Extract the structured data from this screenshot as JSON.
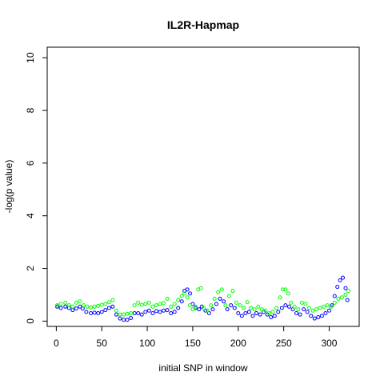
{
  "chart_data": {
    "type": "scatter",
    "title": "IL2R-Hapmap",
    "xlabel": "initial SNP in window",
    "ylabel": "-log(p value)",
    "xlim": [
      -10,
      333
    ],
    "ylim": [
      -0.2,
      10.4
    ],
    "x_ticks": [
      0,
      50,
      100,
      150,
      200,
      250,
      300
    ],
    "y_ticks": [
      0,
      2,
      4,
      6,
      8,
      10
    ],
    "grid": false,
    "marker": "open-circle",
    "series": [
      {
        "color": "#0000ff",
        "points": [
          [
            1,
            0.55
          ],
          [
            5,
            0.5
          ],
          [
            10,
            0.55
          ],
          [
            14,
            0.5
          ],
          [
            18,
            0.42
          ],
          [
            22,
            0.48
          ],
          [
            26,
            0.55
          ],
          [
            29,
            0.48
          ],
          [
            33,
            0.35
          ],
          [
            38,
            0.3
          ],
          [
            42,
            0.32
          ],
          [
            46,
            0.3
          ],
          [
            50,
            0.35
          ],
          [
            54,
            0.42
          ],
          [
            58,
            0.5
          ],
          [
            62,
            0.55
          ],
          [
            66,
            0.25
          ],
          [
            70,
            0.1
          ],
          [
            74,
            0.05
          ],
          [
            78,
            0.05
          ],
          [
            82,
            0.12
          ],
          [
            86,
            0.3
          ],
          [
            90,
            0.3
          ],
          [
            94,
            0.25
          ],
          [
            98,
            0.35
          ],
          [
            102,
            0.4
          ],
          [
            106,
            0.3
          ],
          [
            110,
            0.38
          ],
          [
            114,
            0.35
          ],
          [
            118,
            0.4
          ],
          [
            122,
            0.42
          ],
          [
            126,
            0.3
          ],
          [
            130,
            0.35
          ],
          [
            134,
            0.5
          ],
          [
            138,
            0.75
          ],
          [
            141,
            1.15
          ],
          [
            144,
            1.2
          ],
          [
            147,
            1.05
          ],
          [
            150,
            0.65
          ],
          [
            153,
            0.5
          ],
          [
            157,
            0.45
          ],
          [
            160,
            0.55
          ],
          [
            164,
            0.4
          ],
          [
            168,
            0.3
          ],
          [
            172,
            0.45
          ],
          [
            176,
            0.65
          ],
          [
            180,
            0.85
          ],
          [
            184,
            0.75
          ],
          [
            188,
            0.45
          ],
          [
            192,
            0.6
          ],
          [
            196,
            0.5
          ],
          [
            200,
            0.3
          ],
          [
            204,
            0.2
          ],
          [
            208,
            0.3
          ],
          [
            212,
            0.35
          ],
          [
            216,
            0.2
          ],
          [
            220,
            0.3
          ],
          [
            224,
            0.25
          ],
          [
            228,
            0.35
          ],
          [
            232,
            0.25
          ],
          [
            236,
            0.15
          ],
          [
            240,
            0.2
          ],
          [
            244,
            0.35
          ],
          [
            248,
            0.5
          ],
          [
            252,
            0.6
          ],
          [
            256,
            0.55
          ],
          [
            260,
            0.45
          ],
          [
            264,
            0.3
          ],
          [
            268,
            0.25
          ],
          [
            272,
            0.45
          ],
          [
            276,
            0.35
          ],
          [
            280,
            0.2
          ],
          [
            284,
            0.1
          ],
          [
            288,
            0.15
          ],
          [
            292,
            0.2
          ],
          [
            296,
            0.3
          ],
          [
            300,
            0.4
          ],
          [
            303,
            0.6
          ],
          [
            306,
            0.95
          ],
          [
            309,
            1.3
          ],
          [
            312,
            1.55
          ],
          [
            315,
            1.65
          ],
          [
            318,
            1.25
          ],
          [
            320,
            0.8
          ]
        ]
      },
      {
        "color": "#00ff00",
        "points": [
          [
            1,
            0.6
          ],
          [
            5,
            0.65
          ],
          [
            10,
            0.7
          ],
          [
            14,
            0.6
          ],
          [
            18,
            0.55
          ],
          [
            22,
            0.7
          ],
          [
            26,
            0.75
          ],
          [
            30,
            0.6
          ],
          [
            34,
            0.55
          ],
          [
            38,
            0.52
          ],
          [
            42,
            0.55
          ],
          [
            46,
            0.58
          ],
          [
            50,
            0.62
          ],
          [
            54,
            0.65
          ],
          [
            58,
            0.72
          ],
          [
            62,
            0.8
          ],
          [
            66,
            0.4
          ],
          [
            70,
            0.25
          ],
          [
            74,
            0.25
          ],
          [
            78,
            0.28
          ],
          [
            82,
            0.3
          ],
          [
            86,
            0.6
          ],
          [
            90,
            0.7
          ],
          [
            94,
            0.62
          ],
          [
            98,
            0.65
          ],
          [
            102,
            0.7
          ],
          [
            106,
            0.55
          ],
          [
            110,
            0.6
          ],
          [
            114,
            0.65
          ],
          [
            118,
            0.68
          ],
          [
            122,
            0.85
          ],
          [
            126,
            0.55
          ],
          [
            130,
            0.65
          ],
          [
            134,
            0.8
          ],
          [
            138,
            0.95
          ],
          [
            141,
            1.05
          ],
          [
            144,
            0.9
          ],
          [
            147,
            0.6
          ],
          [
            150,
            0.45
          ],
          [
            153,
            0.55
          ],
          [
            156,
            1.2
          ],
          [
            159,
            1.25
          ],
          [
            162,
            0.5
          ],
          [
            166,
            0.4
          ],
          [
            170,
            0.6
          ],
          [
            174,
            0.85
          ],
          [
            178,
            1.1
          ],
          [
            182,
            1.2
          ],
          [
            186,
            0.6
          ],
          [
            190,
            0.95
          ],
          [
            194,
            1.15
          ],
          [
            198,
            0.7
          ],
          [
            202,
            0.6
          ],
          [
            206,
            0.5
          ],
          [
            210,
            0.72
          ],
          [
            214,
            0.5
          ],
          [
            218,
            0.45
          ],
          [
            222,
            0.55
          ],
          [
            226,
            0.45
          ],
          [
            230,
            0.4
          ],
          [
            234,
            0.3
          ],
          [
            238,
            0.35
          ],
          [
            242,
            0.5
          ],
          [
            246,
            0.9
          ],
          [
            249,
            1.2
          ],
          [
            252,
            1.2
          ],
          [
            255,
            1.05
          ],
          [
            258,
            0.7
          ],
          [
            262,
            0.55
          ],
          [
            266,
            0.45
          ],
          [
            270,
            0.7
          ],
          [
            274,
            0.65
          ],
          [
            278,
            0.5
          ],
          [
            282,
            0.4
          ],
          [
            286,
            0.45
          ],
          [
            290,
            0.5
          ],
          [
            294,
            0.55
          ],
          [
            298,
            0.6
          ],
          [
            302,
            0.55
          ],
          [
            306,
            0.7
          ],
          [
            310,
            0.85
          ],
          [
            314,
            0.9
          ],
          [
            318,
            1.0
          ],
          [
            321,
            1.15
          ]
        ]
      }
    ]
  }
}
